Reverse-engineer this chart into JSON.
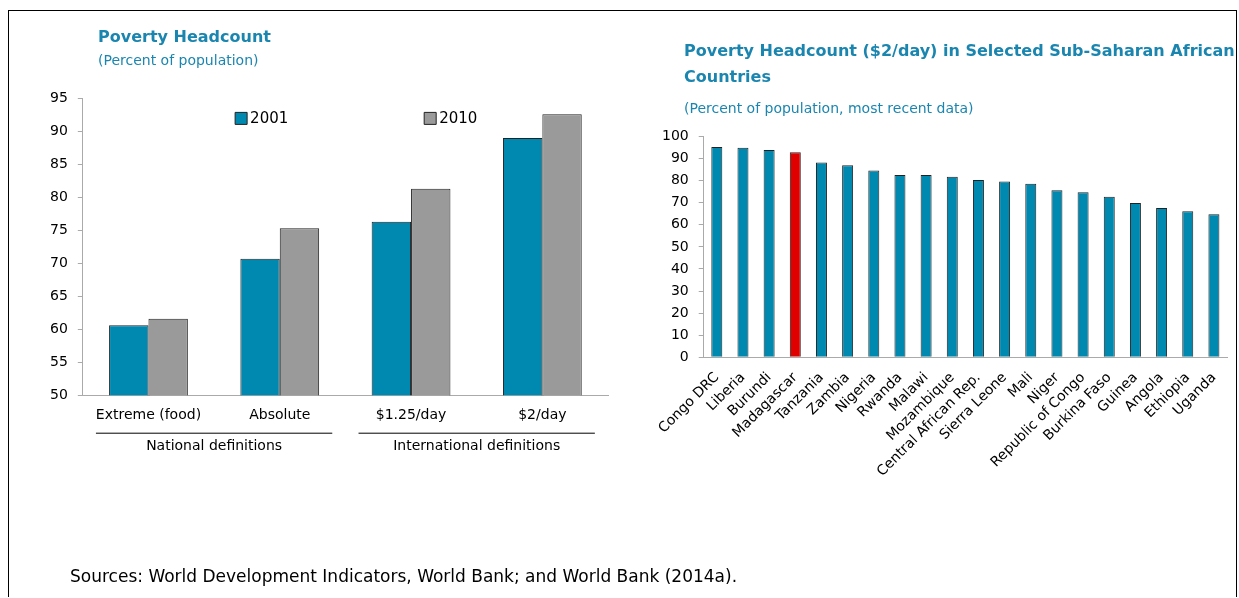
{
  "chart_data": [
    {
      "type": "bar",
      "title": "Poverty Headcount",
      "subtitle": "(Percent of population)",
      "categories": [
        "Extreme (food)",
        "Absolute",
        "$1.25/day",
        "$2/day"
      ],
      "series": [
        {
          "name": "2001",
          "color": "#0089b0",
          "values": [
            60.6,
            70.7,
            76.3,
            89.0
          ]
        },
        {
          "name": "2010",
          "color": "#9a9a9a",
          "values": [
            61.6,
            75.3,
            81.3,
            92.6
          ]
        }
      ],
      "ylim": [
        50,
        95
      ],
      "yticks": [
        50,
        55,
        60,
        65,
        70,
        75,
        80,
        85,
        90,
        95
      ],
      "grid": false,
      "legend": "top",
      "annotations": [
        "National definitions",
        "International definitions"
      ]
    },
    {
      "type": "bar",
      "title": "Poverty Headcount ($2/day) in Selected Sub-Saharan African Countries",
      "subtitle": "(Percent of population, most recent data)",
      "categories": [
        "Congo DRC",
        "Liberia",
        "Burundi",
        "Madagascar",
        "Tanzania",
        "Zambia",
        "Nigeria",
        "Rwanda",
        "Malawi",
        "Mozambique",
        "Central African Rep.",
        "Sierra Leone",
        "Mali",
        "Niger",
        "Republic of Congo",
        "Burkina Faso",
        "Guinea",
        "Angola",
        "Ethiopia",
        "Uganda"
      ],
      "values": [
        95.2,
        94.9,
        93.9,
        92.8,
        88.2,
        86.9,
        84.6,
        82.5,
        82.5,
        81.7,
        80.3,
        79.6,
        78.6,
        75.6,
        74.7,
        72.7,
        69.9,
        67.6,
        66.1,
        64.8
      ],
      "colors": [
        "#0089b0",
        "#0089b0",
        "#0089b0",
        "#e00000",
        "#0089b0",
        "#0089b0",
        "#0089b0",
        "#0089b0",
        "#0089b0",
        "#0089b0",
        "#0089b0",
        "#0089b0",
        "#0089b0",
        "#0089b0",
        "#0089b0",
        "#0089b0",
        "#0089b0",
        "#0089b0",
        "#0089b0",
        "#0089b0"
      ],
      "ylim": [
        0,
        100
      ],
      "yticks": [
        0,
        10,
        20,
        30,
        40,
        50,
        60,
        70,
        80,
        90,
        100
      ],
      "grid": false,
      "legend": false,
      "annotations": [
        "Sources: World Development Indicators, World Bank; and World Bank (2014a)."
      ]
    }
  ]
}
